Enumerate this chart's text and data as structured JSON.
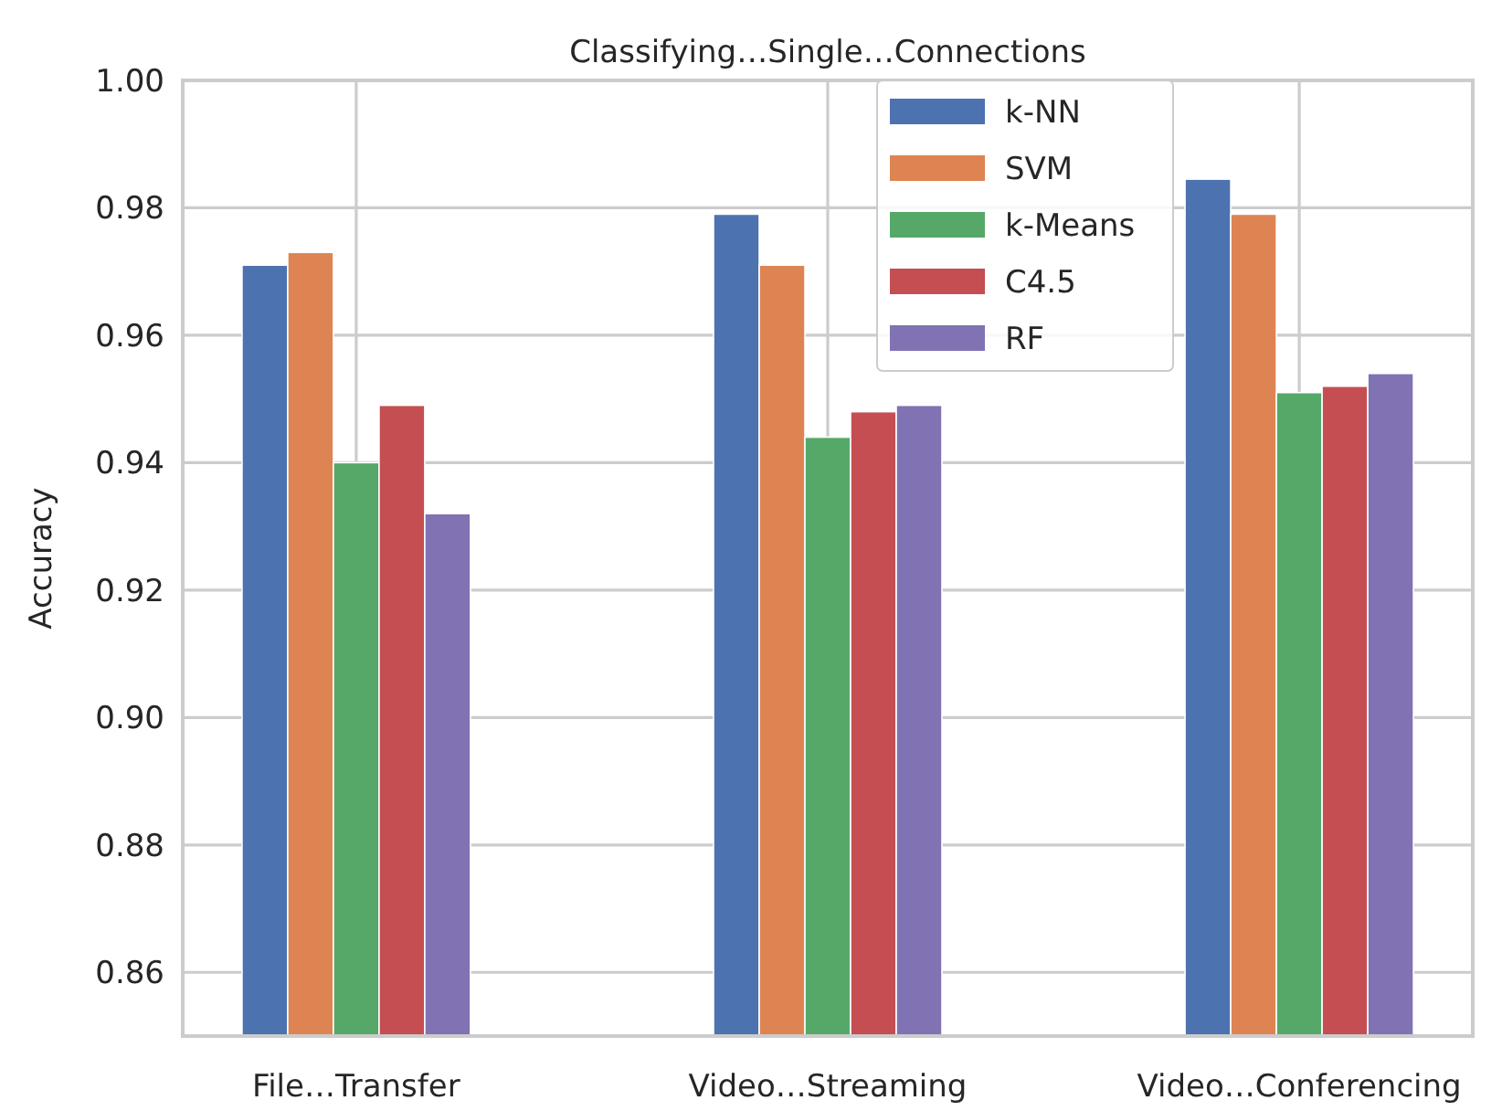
{
  "chart_data": {
    "type": "bar",
    "title": "Classifying…Single…Connections",
    "ylabel": "Accuracy",
    "categories": [
      "File…Transfer",
      "Video…Streaming",
      "Video…Conferencing"
    ],
    "series": [
      {
        "name": "k-NN",
        "color": "#4c72b0",
        "values": [
          0.971,
          0.979,
          0.9845
        ]
      },
      {
        "name": "SVM",
        "color": "#dd8452",
        "values": [
          0.973,
          0.971,
          0.979
        ]
      },
      {
        "name": "k-Means",
        "color": "#55a868",
        "values": [
          0.94,
          0.944,
          0.951
        ]
      },
      {
        "name": "C4.5",
        "color": "#c44e52",
        "values": [
          0.949,
          0.948,
          0.952
        ]
      },
      {
        "name": "RF",
        "color": "#8172b3",
        "values": [
          0.932,
          0.949,
          0.954
        ]
      }
    ],
    "ylim": [
      0.85,
      1.0
    ],
    "yticks": [
      {
        "value": 0.86,
        "label": "0.86"
      },
      {
        "value": 0.88,
        "label": "0.88"
      },
      {
        "value": 0.9,
        "label": "0.90"
      },
      {
        "value": 0.92,
        "label": "0.92"
      },
      {
        "value": 0.94,
        "label": "0.94"
      },
      {
        "value": 0.96,
        "label": "0.96"
      },
      {
        "value": 0.98,
        "label": "0.98"
      },
      {
        "value": 1.0,
        "label": "1.00"
      }
    ],
    "grid": true,
    "legend": "top"
  }
}
